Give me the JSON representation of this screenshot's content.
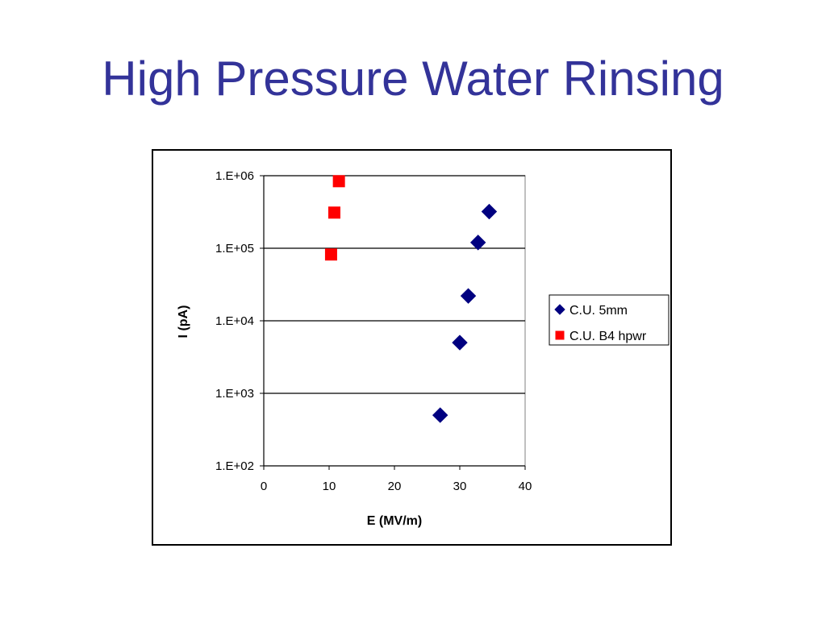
{
  "slide": {
    "title": "High Pressure Water Rinsing"
  },
  "chart_data": {
    "type": "scatter",
    "xlabel": "E (MV/m)",
    "ylabel": "I (pA)",
    "xlim": [
      0,
      40
    ],
    "ylim": [
      100,
      1000000
    ],
    "y_scale": "log",
    "x_ticks": [
      "0",
      "10",
      "20",
      "30",
      "40"
    ],
    "y_ticks": [
      "1.E+02",
      "1.E+03",
      "1.E+04",
      "1.E+05",
      "1.E+06"
    ],
    "grid": "horizontal major gridlines",
    "legend_position": "right",
    "series": [
      {
        "name": "C.U. 5mm",
        "marker": "diamond",
        "color": "#000080",
        "points": [
          {
            "x": 27.0,
            "y": 500
          },
          {
            "x": 30.0,
            "y": 5000
          },
          {
            "x": 31.3,
            "y": 22000
          },
          {
            "x": 32.8,
            "y": 120000
          },
          {
            "x": 34.5,
            "y": 320000
          }
        ]
      },
      {
        "name": "C.U. B4 hpwr",
        "marker": "square",
        "color": "#ff0000",
        "points": [
          {
            "x": 10.3,
            "y": 82000
          },
          {
            "x": 10.8,
            "y": 310000
          },
          {
            "x": 11.5,
            "y": 840000
          }
        ]
      }
    ]
  }
}
